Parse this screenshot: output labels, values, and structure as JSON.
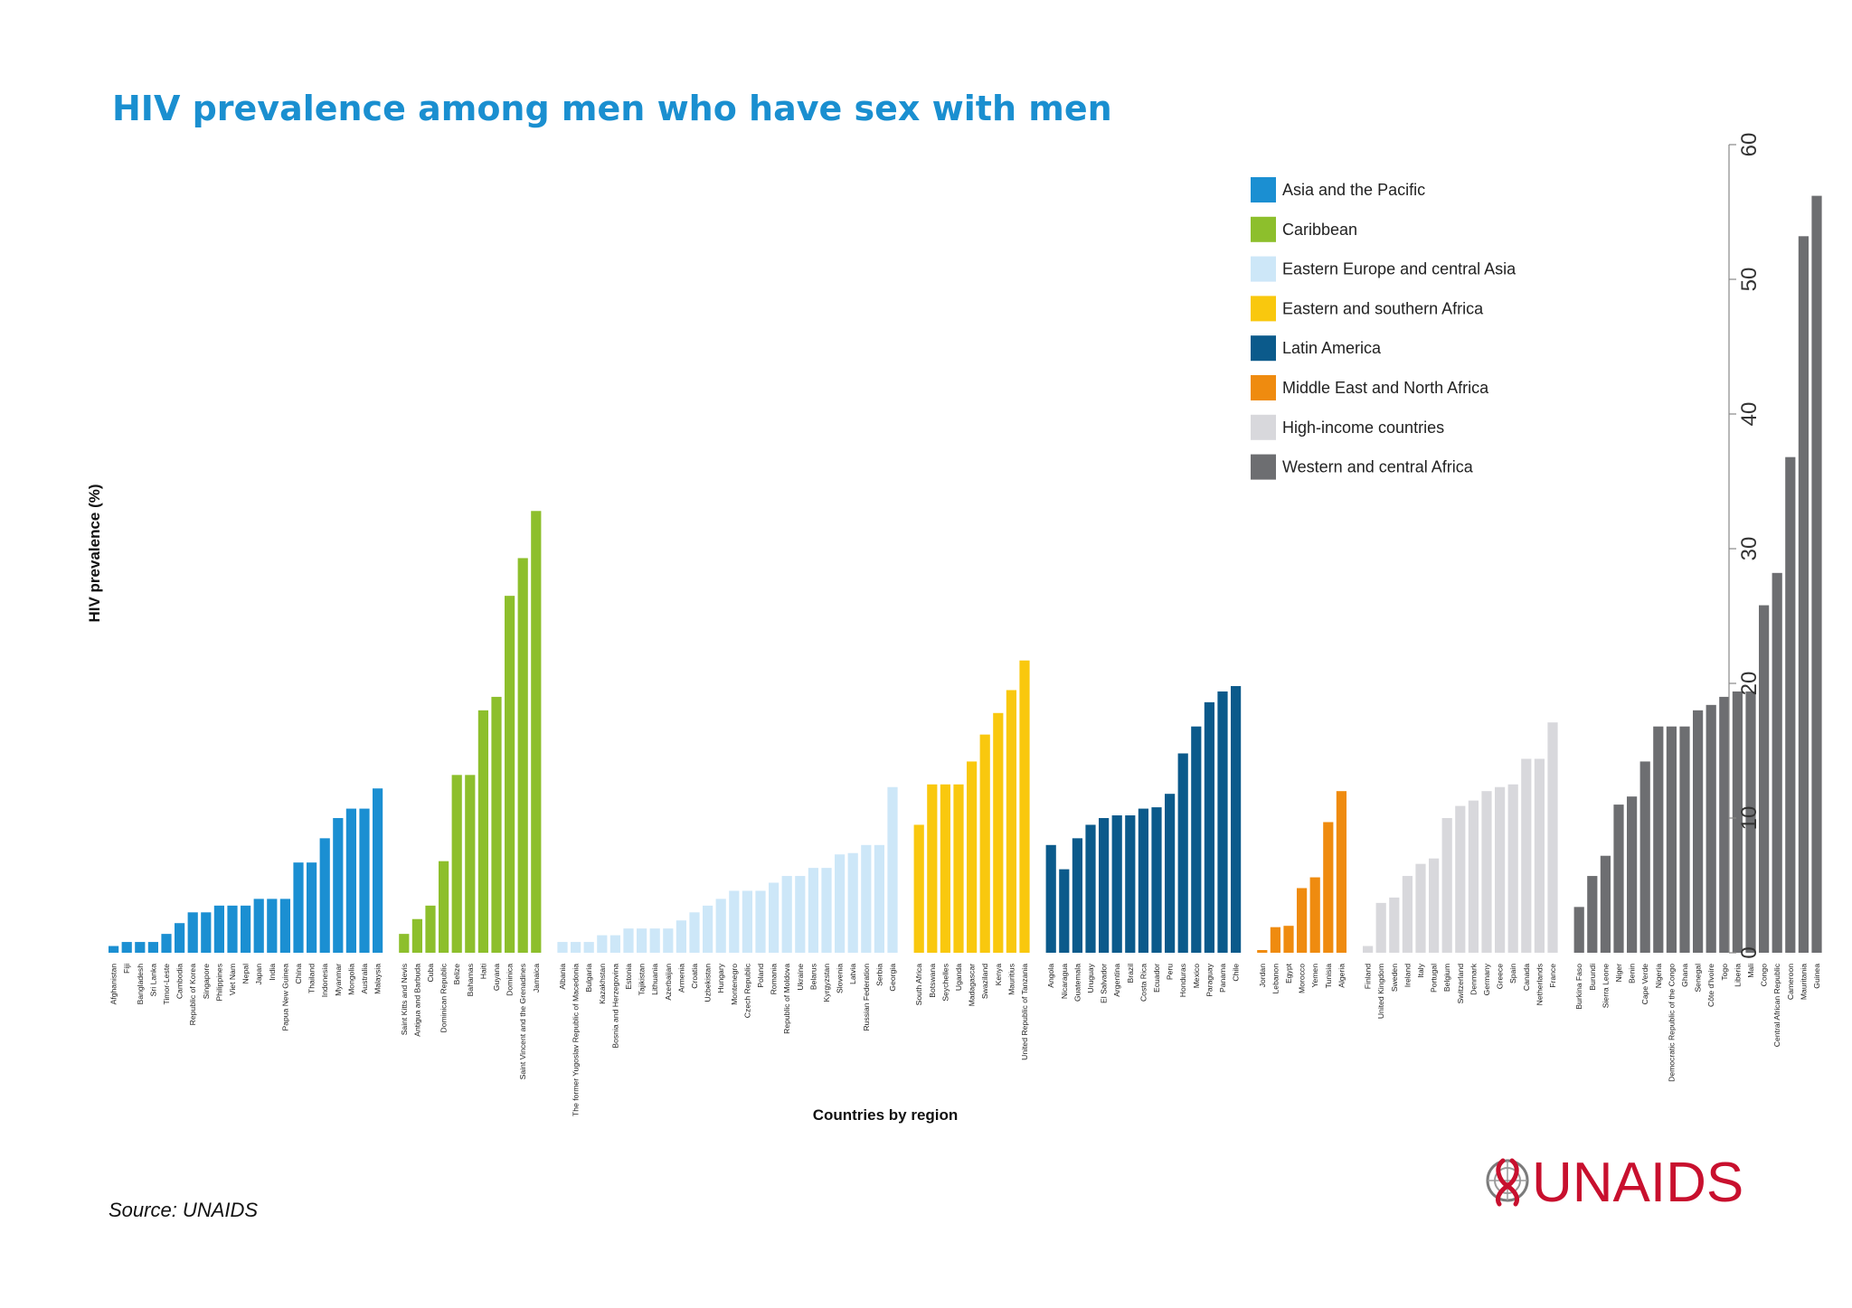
{
  "chart_data": {
    "type": "bar",
    "title": "HIV prevalence among men who have sex with men",
    "xlabel": "Countries by region",
    "ylabel": "HIV prevalence (%)",
    "ylim": [
      0,
      60
    ],
    "yticks": [
      0,
      10,
      20,
      30,
      40,
      50,
      60
    ],
    "y_axis_position": "right",
    "grid": false,
    "legend_position": "top-right",
    "regions": [
      {
        "name": "Asia and the Pacific",
        "color": "#1b8fd2",
        "categories": [
          "Afghanistan",
          "Fiji",
          "Bangladesh",
          "Sri Lanka",
          "Timor-Leste",
          "Cambodia",
          "Republic of Korea",
          "Singapore",
          "Philippines",
          "Viet Nam",
          "Nepal",
          "Japan",
          "India",
          "Papua New Guinea",
          "China",
          "Thailand",
          "Indonesia",
          "Myanmar",
          "Mongolia",
          "Australia",
          "Malaysia"
        ],
        "values": [
          0.5,
          0.8,
          0.8,
          0.8,
          1.4,
          2.2,
          3.0,
          3.0,
          3.5,
          3.5,
          3.5,
          4.0,
          4.0,
          4.0,
          6.7,
          6.7,
          8.5,
          10.0,
          10.7,
          10.7,
          12.2
        ]
      },
      {
        "name": "Caribbean",
        "color": "#8dbf2c",
        "categories": [
          "Saint Kitts and Nevis",
          "Antigua and Barbuda",
          "Cuba",
          "Dominican Republic",
          "Belize",
          "Bahamas",
          "Haiti",
          "Guyana",
          "Dominica",
          "Saint Vincent and the Grenadines",
          "Jamaica"
        ],
        "values": [
          1.4,
          2.5,
          3.5,
          6.8,
          13.2,
          13.2,
          18.0,
          19.0,
          26.5,
          29.3,
          32.8
        ]
      },
      {
        "name": "Eastern Europe and central Asia",
        "color": "#cde7f8",
        "categories": [
          "Albania",
          "The former Yugoslav Republic of Macedonia",
          "Bulgaria",
          "Kazakhstan",
          "Bosnia and Herzegovina",
          "Estonia",
          "Tajikistan",
          "Lithuania",
          "Azerbaijan",
          "Armenia",
          "Croatia",
          "Uzbekistan",
          "Hungary",
          "Montenegro",
          "Czech Republic",
          "Poland",
          "Romania",
          "Republic of Moldova",
          "Ukraine",
          "Belarus",
          "Kyrgyzstan",
          "Slovenia",
          "Latvia",
          "Russian Federation",
          "Serbia",
          "Georgia"
        ],
        "values": [
          0.8,
          0.8,
          0.8,
          1.3,
          1.3,
          1.8,
          1.8,
          1.8,
          1.8,
          2.4,
          3.0,
          3.5,
          4.0,
          4.6,
          4.6,
          4.6,
          5.2,
          5.7,
          5.7,
          6.3,
          6.3,
          7.3,
          7.4,
          8.0,
          8.0,
          12.3
        ]
      },
      {
        "name": "Eastern and southern Africa",
        "color": "#f9c80e",
        "categories": [
          "South Africa",
          "Botswana",
          "Seychelles",
          "Uganda",
          "Madagascar",
          "Swaziland",
          "Kenya",
          "Mauritius",
          "United Republic of Tanzania"
        ],
        "values": [
          9.5,
          12.5,
          12.5,
          12.5,
          14.2,
          16.2,
          17.8,
          19.5,
          21.7
        ]
      },
      {
        "name": "Latin America",
        "color": "#0b5a8b",
        "categories": [
          "Angola",
          "Nicaragua",
          "Guatemala",
          "Uruguay",
          "El Salvador",
          "Argentina",
          "Brazil",
          "Costa Rica",
          "Ecuador",
          "Peru",
          "Honduras",
          "Mexico",
          "Paraguay",
          "Panama",
          "Chile"
        ],
        "values": [
          8.0,
          6.2,
          8.5,
          9.5,
          10.0,
          10.2,
          10.2,
          10.7,
          10.8,
          11.8,
          14.8,
          16.8,
          18.6,
          19.4,
          19.8
        ]
      },
      {
        "name": "Middle East and North Africa",
        "color": "#ef8b0f",
        "categories": [
          "Jordan",
          "Lebanon",
          "Egypt",
          "Morocco",
          "Yemen",
          "Tunisia",
          "Algeria"
        ],
        "values": [
          0.2,
          1.9,
          2.0,
          4.8,
          5.6,
          9.7,
          12.0
        ]
      },
      {
        "name": "High-income countries",
        "color": "#d8d8dc",
        "categories": [
          "Finland",
          "United Kingdom",
          "Sweden",
          "Ireland",
          "Italy",
          "Portugal",
          "Belgium",
          "Switzerland",
          "Denmark",
          "Germany",
          "Greece",
          "Spain",
          "Canada",
          "Netherlands",
          "France"
        ],
        "values": [
          0.5,
          3.7,
          4.1,
          5.7,
          6.6,
          7.0,
          10.0,
          10.9,
          11.3,
          12.0,
          12.3,
          12.5,
          14.4,
          14.4,
          17.1
        ]
      },
      {
        "name": "Western and central Africa",
        "color": "#6d6e71",
        "categories": [
          "Burkina Faso",
          "Burundi",
          "Sierra Leone",
          "Niger",
          "Benin",
          "Cape Verde",
          "Nigeria",
          "Democratic Republic of the Congo",
          "Ghana",
          "Senegal",
          "Côte d'Ivoire",
          "Togo",
          "Liberia",
          "Mali",
          "Congo",
          "Central African Republic",
          "Cameroon",
          "Mauritania",
          "Guinea"
        ],
        "values": [
          3.4,
          5.7,
          7.2,
          11.0,
          11.6,
          14.2,
          16.8,
          16.8,
          16.8,
          18.0,
          18.4,
          19.0,
          19.4,
          19.4,
          25.8,
          28.2,
          36.8,
          53.2,
          56.2
        ]
      }
    ]
  },
  "footer": {
    "source": "Source: UNAIDS",
    "logo_text": "UNAIDS"
  }
}
